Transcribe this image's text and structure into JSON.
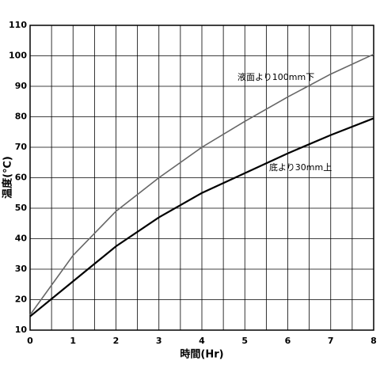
{
  "chart_data": {
    "type": "line",
    "x_label": "時間(Hr)",
    "y_label": "温度(℃)",
    "x": [
      0,
      1,
      2,
      3,
      4,
      5,
      6,
      7,
      8
    ],
    "series": [
      {
        "name": "液面より100mm下",
        "color": "#666666",
        "values": [
          15,
          34.5,
          49,
          60,
          70,
          78.5,
          86.5,
          94,
          100.5
        ]
      },
      {
        "name": "底より30mm上",
        "color": "#000000",
        "values": [
          14.5,
          26,
          37.5,
          47,
          55,
          61.5,
          68,
          74,
          79.5
        ]
      }
    ],
    "xlim": [
      0,
      8
    ],
    "xticks": [
      0,
      1,
      2,
      3,
      4,
      5,
      6,
      7,
      8
    ],
    "x_minor_ticks": [
      0.5,
      1.5,
      2.5,
      3.5,
      4.5,
      5.5,
      6.5,
      7.5
    ],
    "ylim": [
      10,
      110
    ],
    "yticks": [
      10,
      20,
      30,
      40,
      50,
      60,
      70,
      80,
      90,
      100,
      110
    ],
    "grid": true
  }
}
